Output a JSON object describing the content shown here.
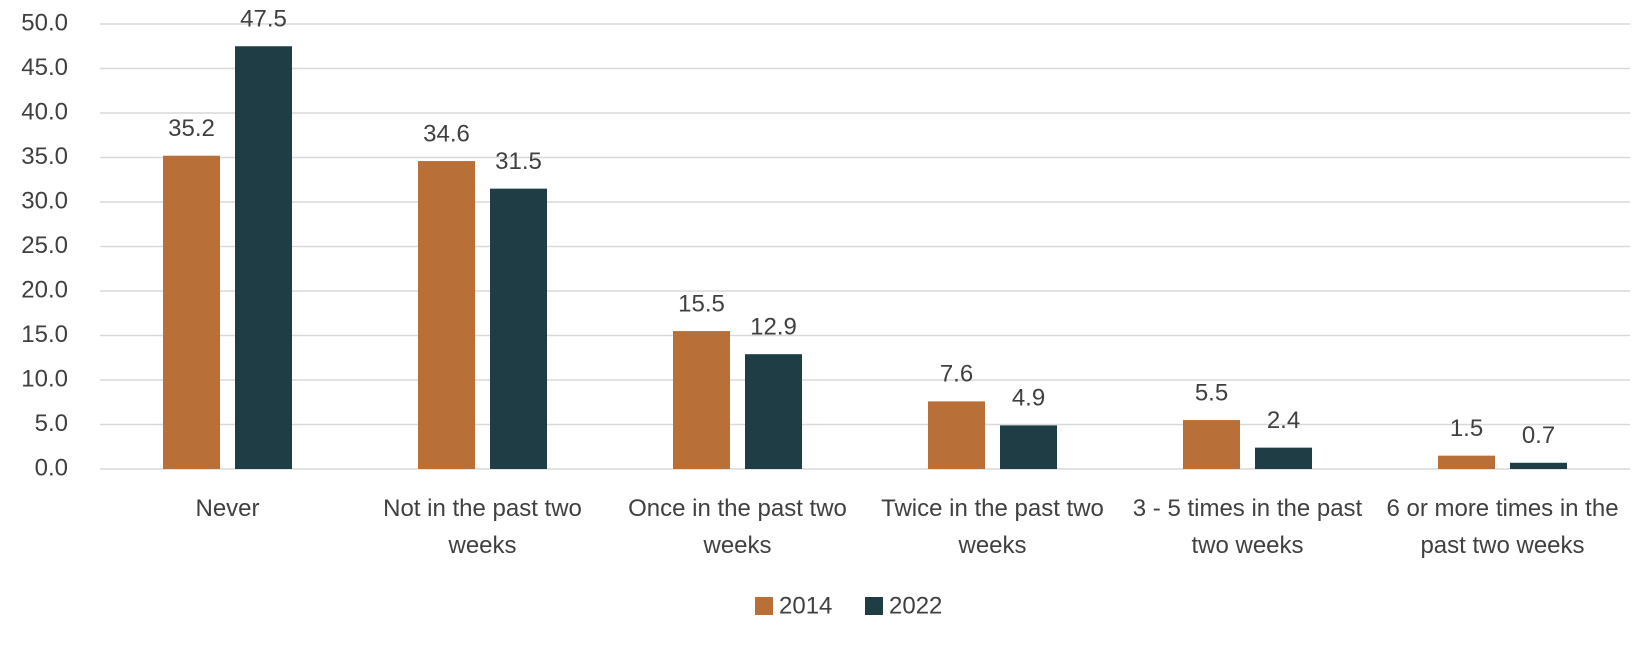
{
  "chart_data": {
    "type": "bar",
    "categories": [
      "Never",
      "Not in the past two weeks",
      "Once in the past two weeks",
      "Twice in the past two weeks",
      "3 - 5 times in the past two weeks",
      "6 or more times in the past two weeks"
    ],
    "series": [
      {
        "name": "2014",
        "color": "#b87038",
        "values": [
          35.2,
          34.6,
          15.5,
          7.6,
          5.5,
          1.5
        ]
      },
      {
        "name": "2022",
        "color": "#1e3d45",
        "values": [
          47.5,
          31.5,
          12.9,
          4.9,
          2.4,
          0.7
        ]
      }
    ],
    "ylim": [
      0,
      50
    ],
    "yticks": [
      {
        "value": 0,
        "label": "0.0"
      },
      {
        "value": 5,
        "label": "5.0"
      },
      {
        "value": 10,
        "label": "10.0"
      },
      {
        "value": 15,
        "label": "15.0"
      },
      {
        "value": 20,
        "label": "20.0"
      },
      {
        "value": 25,
        "label": "25.0"
      },
      {
        "value": 30,
        "label": "30.0"
      },
      {
        "value": 35,
        "label": "35.0"
      },
      {
        "value": 40,
        "label": "40.0"
      },
      {
        "value": 45,
        "label": "45.0"
      },
      {
        "value": 50,
        "label": "50.0"
      }
    ],
    "grid": true,
    "legend": "bottom"
  }
}
